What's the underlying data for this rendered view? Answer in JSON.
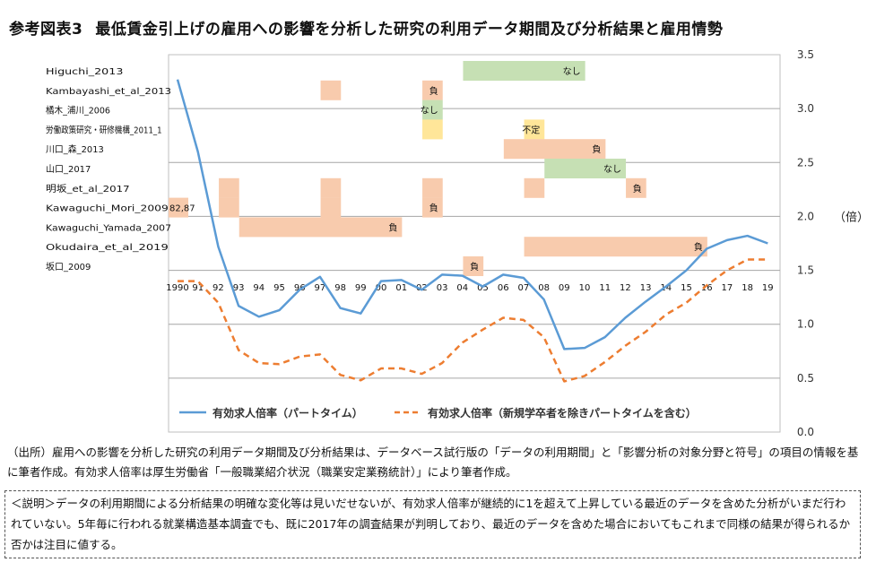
{
  "title": {
    "prefix": "参考図表3",
    "text": "最低賃金引上げの雇用への影響を分析した研究の利用データ期間及び分析結果と雇用情勢"
  },
  "source_note": "（出所）雇用への影響を分析した研究の利用データ期間及び分析結果は、データベース試行版の「データの利用期間」と「影響分析の対象分野と符号」の項目の情報を基に筆者作成。有効求人倍率は厚生労働省「一般職業紹介状況（職業安定業務統計）」により筆者作成。",
  "explanation": "＜説明＞データの利用期間による分析結果の明確な変化等は見いだせないが、有効求人倍率が継続的に1を超えて上昇している最近のデータを含めた分析がいまだ行われていない。5年毎に行われる就業構造基本調査でも、既に2017年の調査結果が判明しており、最近のデータを含めた場合においてもこれまで同様の結果が得られるか否かは注目に値する。",
  "chart_data": {
    "type": "line",
    "x": [
      "1990",
      "91",
      "92",
      "93",
      "94",
      "95",
      "96",
      "97",
      "98",
      "99",
      "00",
      "01",
      "02",
      "03",
      "04",
      "05",
      "06",
      "07",
      "08",
      "09",
      "10",
      "11",
      "12",
      "13",
      "14",
      "15",
      "16",
      "17",
      "18",
      "19"
    ],
    "ylabel": "（倍）",
    "ylim": [
      0,
      3.5
    ],
    "yticks": [
      "0.0",
      "0.5",
      "1.0",
      "1.5",
      "2.0",
      "2.5",
      "3.0",
      "3.5"
    ],
    "grid": true,
    "legend_position": "bottom-inside",
    "series": [
      {
        "name": "有効求人倍率（パートタイム）",
        "color": "#5b9bd5",
        "style": "solid",
        "values": [
          3.27,
          2.6,
          1.72,
          1.17,
          1.07,
          1.13,
          1.32,
          1.44,
          1.15,
          1.1,
          1.4,
          1.41,
          1.32,
          1.46,
          1.45,
          1.35,
          1.46,
          1.43,
          1.23,
          0.77,
          0.78,
          0.88,
          1.06,
          1.21,
          1.35,
          1.5,
          1.7,
          1.78,
          1.82,
          1.75
        ]
      },
      {
        "name": "有効求人倍率（新規学卒者を除きパートタイムを含む）",
        "color": "#ed7d31",
        "style": "dashed",
        "values": [
          1.4,
          1.4,
          1.2,
          0.76,
          0.64,
          0.63,
          0.7,
          0.72,
          0.53,
          0.48,
          0.59,
          0.59,
          0.54,
          0.64,
          0.83,
          0.95,
          1.06,
          1.04,
          0.88,
          0.47,
          0.52,
          0.65,
          0.8,
          0.93,
          1.09,
          1.2,
          1.36,
          1.5,
          1.6,
          1.6
        ]
      }
    ],
    "studies": [
      {
        "name": "Higuchi_2013",
        "spans": [
          {
            "from": "04",
            "to": "09",
            "result": "なし",
            "color": "#c6e0b4"
          }
        ]
      },
      {
        "name": "Kambayashi_et_al_2013",
        "spans": [
          {
            "from": "97",
            "to": "97",
            "result": "",
            "color": "#f8cbad"
          },
          {
            "from": "02",
            "to": "02",
            "result": "負",
            "color": "#f8cbad"
          }
        ]
      },
      {
        "name": "橘木_浦川_2006",
        "spans": [
          {
            "from": "02",
            "to": "02",
            "result": "なし",
            "color": "#c6e0b4"
          }
        ]
      },
      {
        "name": "労働政策研究・研修機構_2011_1",
        "spans": [
          {
            "from": "02",
            "to": "02",
            "result": "",
            "color": "#ffe699"
          },
          {
            "from": "07",
            "to": "07",
            "result": "不定",
            "color": "#ffe699"
          }
        ]
      },
      {
        "name": "川口_森_2013",
        "spans": [
          {
            "from": "06",
            "to": "10",
            "result": "負",
            "color": "#f8cbad"
          }
        ]
      },
      {
        "name": "山口_2017",
        "spans": [
          {
            "from": "08",
            "to": "11",
            "result": "なし",
            "color": "#c6e0b4"
          }
        ]
      },
      {
        "name": "明坂_et_al_2017",
        "spans": [
          {
            "from": "92",
            "to": "92",
            "result": "",
            "color": "#f8cbad"
          },
          {
            "from": "97",
            "to": "97",
            "result": "",
            "color": "#f8cbad"
          },
          {
            "from": "02",
            "to": "02",
            "result": "",
            "color": "#f8cbad"
          },
          {
            "from": "07",
            "to": "07",
            "result": "",
            "color": "#f8cbad"
          },
          {
            "from": "12",
            "to": "12",
            "result": "負",
            "color": "#f8cbad"
          }
        ]
      },
      {
        "name": "Kawaguchi_Mori_2009",
        "spans": [
          {
            "from": "82,87",
            "to": "82,87",
            "result": "82,87",
            "color": "#f8cbad"
          },
          {
            "from": "92",
            "to": "92",
            "result": "",
            "color": "#f8cbad"
          },
          {
            "from": "97",
            "to": "97",
            "result": "",
            "color": "#f8cbad"
          },
          {
            "from": "02",
            "to": "02",
            "result": "負",
            "color": "#f8cbad"
          }
        ]
      },
      {
        "name": "Kawaguchi_Yamada_2007",
        "spans": [
          {
            "from": "93",
            "to": "00",
            "result": "負",
            "color": "#f8cbad"
          }
        ]
      },
      {
        "name": "Okudaira_et_al_2019",
        "spans": [
          {
            "from": "07",
            "to": "15",
            "result": "負",
            "color": "#f8cbad"
          }
        ]
      },
      {
        "name": "坂口_2009",
        "spans": [
          {
            "from": "04",
            "to": "04",
            "result": "負",
            "color": "#f8cbad"
          }
        ]
      }
    ]
  }
}
